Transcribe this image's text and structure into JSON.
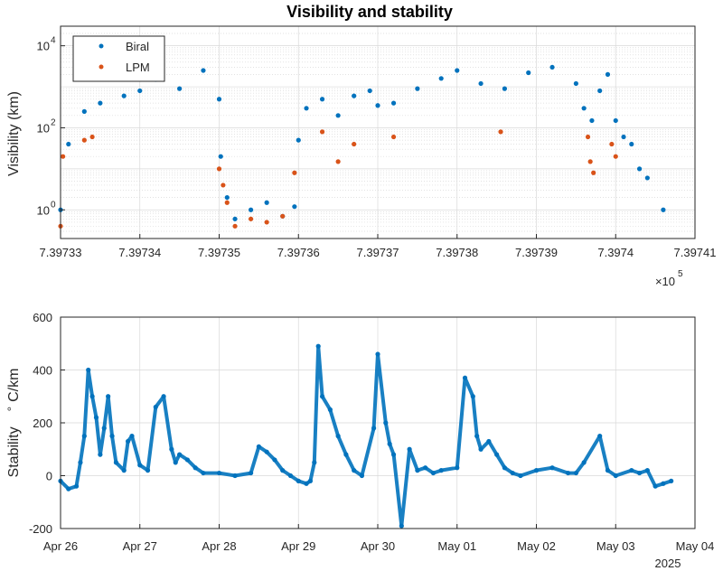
{
  "colors": {
    "biral": "#0072BD",
    "lpm": "#D95319",
    "grid": "#d9d9d9",
    "axis": "#262626"
  },
  "chart_data": [
    {
      "type": "scatter",
      "title": "Visibility and stability",
      "ylabel": "Visibility (km)",
      "yscale": "log",
      "ylim": [
        0.2,
        30000
      ],
      "xlim": [
        739733,
        739741
      ],
      "x_ticks": [
        739733,
        739734,
        739735,
        739736,
        739737,
        739738,
        739739,
        739740,
        739741
      ],
      "x_tick_labels": [
        "7.39733",
        "7.39734",
        "7.39735",
        "7.39736",
        "7.39737",
        "7.39738",
        "7.39739",
        "7.3974",
        "7.39741"
      ],
      "x_exponent_base": "×10",
      "x_exponent_power": "5",
      "y_ticks": [
        1,
        100,
        10000
      ],
      "y_tick_bases": [
        "10",
        "10",
        "10"
      ],
      "y_tick_powers": [
        "0",
        "2",
        "4"
      ],
      "grid": true,
      "legend_position": "top-left",
      "series": [
        {
          "name": "Biral",
          "x": [
            739733.0,
            739733.1,
            739733.3,
            739733.5,
            739733.8,
            739734.0,
            739734.2,
            739734.5,
            739734.8,
            739735.0,
            739735.02,
            739735.1,
            739735.2,
            739735.4,
            739735.6,
            739735.8,
            739735.95,
            739736.0,
            739736.1,
            739736.3,
            739736.5,
            739736.7,
            739736.9,
            739737.0,
            739737.2,
            739737.5,
            739737.8,
            739738.0,
            739738.3,
            739738.6,
            739738.9,
            739739.2,
            739739.5,
            739739.6,
            739739.7,
            739739.8,
            739739.9,
            739740.0,
            739740.1,
            739740.2,
            739740.3,
            739740.4,
            739740.6
          ],
          "y": [
            1.0,
            40,
            250,
            400,
            600,
            800,
            1500,
            900,
            2500,
            500,
            20,
            2,
            0.6,
            1.0,
            1.5,
            0.7,
            1.2,
            50,
            300,
            500,
            200,
            600,
            800,
            350,
            400,
            900,
            1600,
            2500,
            1200,
            900,
            2200,
            3000,
            1200,
            300,
            150,
            800,
            2000,
            150,
            60,
            40,
            10,
            6,
            1.0
          ]
        },
        {
          "name": "LPM",
          "x": [
            739733.0,
            739733.03,
            739733.3,
            739733.4,
            739735.0,
            739735.05,
            739735.1,
            739735.2,
            739735.4,
            739735.6,
            739735.8,
            739735.95,
            739736.3,
            739736.5,
            739736.7,
            739737.2,
            739738.55,
            739739.65,
            739739.68,
            739739.72,
            739739.95,
            739740.0
          ],
          "y": [
            0.4,
            20,
            50,
            60,
            10,
            4,
            1.5,
            0.4,
            0.6,
            0.5,
            0.7,
            8,
            80,
            15,
            40,
            60,
            80,
            60,
            15,
            8,
            40,
            20
          ]
        }
      ]
    },
    {
      "type": "scatter",
      "title": "",
      "xlabel": "2025",
      "ylabel_parts": [
        "Stability",
        "∘",
        "C/km"
      ],
      "ylim": [
        -200,
        600
      ],
      "y_ticks": [
        -200,
        0,
        200,
        400,
        600
      ],
      "x_tick_labels": [
        "Apr 26",
        "Apr 27",
        "Apr 28",
        "Apr 29",
        "Apr 30",
        "May 01",
        "May 02",
        "May 03",
        "May 04"
      ],
      "x_range_days": [
        0,
        8
      ],
      "grid": true,
      "series": [
        {
          "x": [
            0.0,
            0.1,
            0.2,
            0.25,
            0.3,
            0.35,
            0.4,
            0.45,
            0.5,
            0.55,
            0.6,
            0.65,
            0.7,
            0.8,
            0.85,
            0.9,
            1.0,
            1.1,
            1.2,
            1.3,
            1.4,
            1.45,
            1.5,
            1.6,
            1.7,
            1.8,
            2.0,
            2.2,
            2.4,
            2.5,
            2.6,
            2.7,
            2.8,
            2.9,
            3.0,
            3.1,
            3.15,
            3.2,
            3.25,
            3.3,
            3.4,
            3.5,
            3.6,
            3.7,
            3.8,
            3.95,
            4.0,
            4.1,
            4.15,
            4.2,
            4.3,
            4.4,
            4.5,
            4.6,
            4.7,
            4.8,
            5.0,
            5.1,
            5.2,
            5.25,
            5.3,
            5.4,
            5.5,
            5.6,
            5.7,
            5.8,
            6.0,
            6.2,
            6.4,
            6.5,
            6.6,
            6.8,
            6.9,
            7.0,
            7.2,
            7.3,
            7.4,
            7.5,
            7.6,
            7.7
          ],
          "y": [
            -20,
            -50,
            -40,
            50,
            150,
            400,
            300,
            220,
            80,
            180,
            300,
            150,
            50,
            20,
            130,
            150,
            40,
            20,
            260,
            300,
            100,
            50,
            80,
            60,
            30,
            10,
            10,
            0,
            10,
            110,
            90,
            60,
            20,
            0,
            -20,
            -30,
            -20,
            50,
            490,
            300,
            250,
            150,
            80,
            20,
            0,
            180,
            460,
            200,
            120,
            80,
            -190,
            100,
            20,
            30,
            10,
            20,
            30,
            370,
            300,
            150,
            100,
            130,
            80,
            30,
            10,
            0,
            20,
            30,
            10,
            10,
            50,
            150,
            20,
            0,
            20,
            10,
            20,
            -40,
            -30,
            -20
          ]
        }
      ]
    }
  ]
}
